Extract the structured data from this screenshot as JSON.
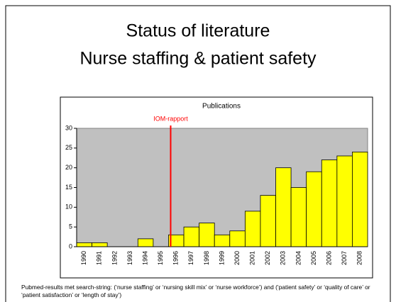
{
  "title_lines": [
    "Status of literature",
    "Nurse staffing & patient safety"
  ],
  "chart_data": {
    "type": "bar",
    "title": "Publications",
    "categories": [
      "1990",
      "1991",
      "1992",
      "1993",
      "1994",
      "1995",
      "1996",
      "1997",
      "1998",
      "1999",
      "2000",
      "2001",
      "2002",
      "2003",
      "2004",
      "2005",
      "2006",
      "2007",
      "2008"
    ],
    "values": [
      1,
      1,
      0,
      0,
      2,
      0,
      3,
      5,
      6,
      3,
      4,
      9,
      13,
      20,
      15,
      19,
      22,
      23,
      24
    ],
    "color": "#ffff00",
    "plot_background": "#c0c0c0",
    "annotation_color": "#ff0000",
    "ylim": [
      0,
      30
    ],
    "yticks": [
      0,
      5,
      10,
      15,
      20,
      25,
      30
    ],
    "grid": false,
    "annotation": {
      "text": "IOM-rapport"
    }
  },
  "footnote": "Pubmed-results met search-string: (‘nurse staffing’ or ‘nursing skill mix’ or ‘nurse workforce’) and (‘patient safety’ or ‘quality of care’ or ‘patient satisfaction’ or ‘length of stay’)"
}
